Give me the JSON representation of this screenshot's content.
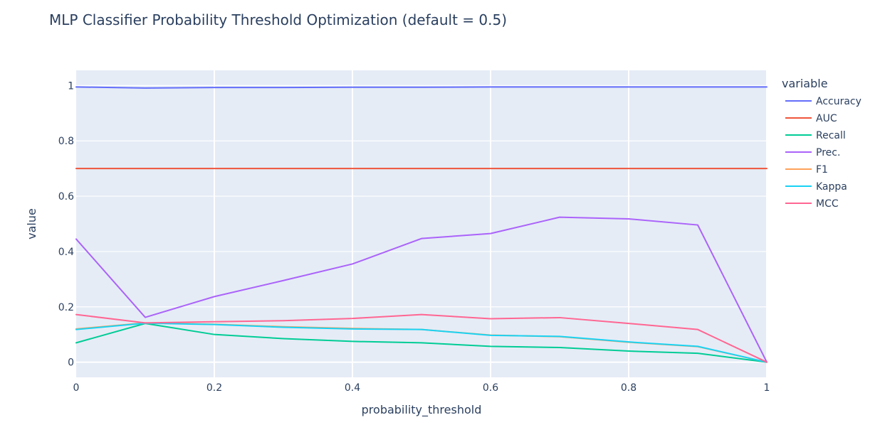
{
  "chart_data": {
    "type": "line",
    "title": "MLP Classifier Probability Threshold Optimization (default = 0.5)",
    "xlabel": "probability_threshold",
    "ylabel": "value",
    "xlim": [
      0,
      1
    ],
    "ylim": [
      -0.055,
      1.055
    ],
    "x_ticks": [
      0,
      0.2,
      0.4,
      0.6,
      0.8,
      1
    ],
    "x_tick_labels": [
      "0",
      "0.2",
      "0.4",
      "0.6",
      "0.8",
      "1"
    ],
    "y_ticks": [
      0,
      0.2,
      0.4,
      0.6,
      0.8,
      1
    ],
    "y_tick_labels": [
      "0",
      "0.2",
      "0.4",
      "0.6",
      "0.8",
      "1"
    ],
    "grid": true,
    "legend_title": "variable",
    "legend_position": "right",
    "x": [
      0,
      0.1,
      0.2,
      0.3,
      0.4,
      0.5,
      0.6,
      0.7,
      0.8,
      0.9,
      1.0
    ],
    "series": [
      {
        "name": "Accuracy",
        "color": "#636efa",
        "values": [
          0.995,
          0.991,
          0.993,
          0.993,
          0.994,
          0.994,
          0.995,
          0.995,
          0.995,
          0.995,
          0.995
        ]
      },
      {
        "name": "AUC",
        "color": "#EF553B",
        "values": [
          0.7,
          0.7,
          0.7,
          0.7,
          0.7,
          0.7,
          0.7,
          0.7,
          0.7,
          0.7,
          0.7
        ]
      },
      {
        "name": "Recall",
        "color": "#00cc96",
        "values": [
          0.07,
          0.14,
          0.1,
          0.085,
          0.075,
          0.07,
          0.057,
          0.053,
          0.04,
          0.032,
          0.0
        ]
      },
      {
        "name": "Prec.",
        "color": "#ab63fa",
        "values": [
          0.445,
          0.162,
          0.237,
          0.295,
          0.355,
          0.447,
          0.465,
          0.524,
          0.518,
          0.496,
          0.0
        ]
      },
      {
        "name": "F1",
        "color": "#FFA15A",
        "values": [
          0.12,
          0.142,
          0.137,
          0.128,
          0.122,
          0.118,
          0.098,
          0.092,
          0.072,
          0.056,
          0.0
        ]
      },
      {
        "name": "Kappa",
        "color": "#19d3f3",
        "values": [
          0.118,
          0.141,
          0.136,
          0.126,
          0.12,
          0.118,
          0.097,
          0.093,
          0.073,
          0.057,
          0.0
        ]
      },
      {
        "name": "MCC",
        "color": "#FF6692",
        "values": [
          0.172,
          0.142,
          0.146,
          0.15,
          0.158,
          0.172,
          0.157,
          0.161,
          0.14,
          0.118,
          0.0
        ]
      }
    ]
  }
}
